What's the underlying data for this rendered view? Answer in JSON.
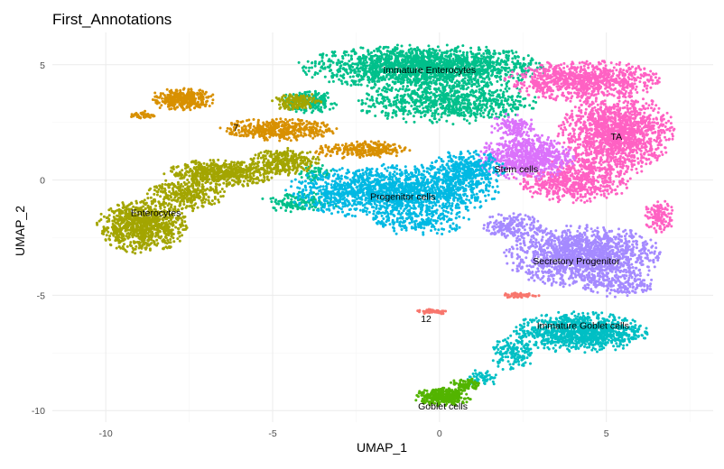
{
  "chart_data": {
    "type": "scatter",
    "title": "First_Annotations",
    "xlabel": "UMAP_1",
    "ylabel": "UMAP_2",
    "xlim": [
      -11.6,
      8.2
    ],
    "ylim": [
      -10.5,
      6.4
    ],
    "x_ticks": [
      -10,
      -5,
      0,
      5
    ],
    "y_ticks": [
      -10,
      -5,
      0,
      5
    ],
    "grid": true,
    "legend": "none",
    "series": [
      {
        "name": "Immature Enterocytes",
        "color": "#00C08B",
        "label_at": [
          -0.3,
          4.8
        ],
        "blobs": [
          [
            -0.5,
            4.9,
            3.8,
            1.0,
            1800
          ],
          [
            0.2,
            3.4,
            2.8,
            1.0,
            800
          ],
          [
            -3.9,
            3.4,
            0.9,
            0.5,
            200
          ],
          [
            -4.2,
            -1.0,
            1.2,
            0.5,
            140
          ],
          [
            -3.7,
            0.3,
            0.6,
            0.4,
            60
          ]
        ]
      },
      {
        "name": "TA",
        "color": "#FF61C3",
        "label_at": [
          5.3,
          1.9
        ],
        "blobs": [
          [
            4.3,
            4.3,
            2.4,
            0.9,
            900
          ],
          [
            5.3,
            2.0,
            1.8,
            1.8,
            1400
          ],
          [
            4.0,
            0.0,
            1.8,
            1.0,
            600
          ],
          [
            6.6,
            -1.6,
            0.5,
            0.8,
            120
          ]
        ]
      },
      {
        "name": "Stem cells",
        "color": "#DB72FB",
        "label_at": [
          2.3,
          0.5
        ],
        "blobs": [
          [
            2.6,
            1.0,
            1.5,
            1.0,
            700
          ],
          [
            2.2,
            2.3,
            0.7,
            0.6,
            120
          ]
        ]
      },
      {
        "name": "Progenitor cells",
        "color": "#00B9E3",
        "label_at": [
          -1.1,
          -0.7
        ],
        "blobs": [
          [
            -1.4,
            -0.5,
            3.3,
            1.2,
            1600
          ],
          [
            0.8,
            0.4,
            1.2,
            0.9,
            400
          ],
          [
            -0.6,
            -1.8,
            1.6,
            0.6,
            200
          ]
        ]
      },
      {
        "name": "Secretory Progenitor",
        "color": "#93AA00",
        "label_at": [
          4.1,
          -3.5
        ],
        "blobs": []
      },
      {
        "name": "Secretory Progenitor",
        "color": "#A58AFF",
        "label_at": [
          4.1,
          -3.5
        ],
        "blobs": [
          [
            4.3,
            -3.3,
            2.4,
            1.4,
            1500
          ],
          [
            2.2,
            -2.0,
            1.0,
            0.6,
            200
          ],
          [
            5.5,
            -4.6,
            1.2,
            0.5,
            150
          ]
        ]
      },
      {
        "name": "Immature Goblet cells",
        "color": "#00BFC4",
        "label_at": [
          4.3,
          -6.3
        ],
        "blobs": [
          [
            4.2,
            -6.6,
            2.1,
            0.9,
            1000
          ],
          [
            2.2,
            -7.5,
            0.7,
            0.8,
            150
          ],
          [
            1.3,
            -8.6,
            0.5,
            0.4,
            60
          ]
        ]
      },
      {
        "name": "Goblet cells",
        "color": "#53B400",
        "label_at": [
          0.1,
          -9.8
        ],
        "blobs": [
          [
            0.1,
            -9.4,
            0.9,
            0.4,
            350
          ],
          [
            0.8,
            -8.9,
            0.5,
            0.3,
            80
          ]
        ]
      },
      {
        "name": "Enterocytes",
        "color": "#A3A500",
        "label_at": [
          -8.5,
          -1.4
        ],
        "blobs": [
          [
            -8.9,
            -2.0,
            1.4,
            1.2,
            900
          ],
          [
            -6.5,
            0.3,
            1.8,
            0.6,
            600
          ],
          [
            -4.6,
            0.8,
            1.1,
            0.6,
            300
          ],
          [
            -4.3,
            3.4,
            0.8,
            0.4,
            150
          ],
          [
            -7.6,
            -0.6,
            1.2,
            0.8,
            300
          ]
        ]
      },
      {
        "name": "7",
        "color": "#D89000",
        "label_at": [
          -6.1,
          2.3
        ],
        "blobs": [
          [
            -7.7,
            3.5,
            1.0,
            0.5,
            350
          ],
          [
            -4.8,
            2.2,
            1.8,
            0.5,
            450
          ],
          [
            -2.3,
            1.3,
            1.5,
            0.4,
            250
          ],
          [
            -8.9,
            2.8,
            0.4,
            0.2,
            40
          ]
        ]
      },
      {
        "name": "12",
        "color": "#F8766D",
        "label_at": [
          -0.4,
          -6.0
        ],
        "blobs": [
          [
            -0.2,
            -5.7,
            0.5,
            0.12,
            60
          ],
          [
            2.4,
            -5.0,
            0.6,
            0.12,
            60
          ]
        ]
      }
    ],
    "labels": [
      {
        "text": "Immature Enterocytes",
        "x": -0.3,
        "y": 4.8
      },
      {
        "text": "TA",
        "x": 5.3,
        "y": 1.9
      },
      {
        "text": "7",
        "x": -6.1,
        "y": 2.3
      },
      {
        "text": "Stem cells",
        "x": 2.3,
        "y": 0.5
      },
      {
        "text": "Progenitor cells",
        "x": -1.1,
        "y": -0.7
      },
      {
        "text": "Enterocytes",
        "x": -8.5,
        "y": -1.4
      },
      {
        "text": "Secretory Progenitor",
        "x": 4.1,
        "y": -3.5
      },
      {
        "text": "12",
        "x": -0.4,
        "y": -6.0
      },
      {
        "text": "Immature Goblet cells",
        "x": 4.3,
        "y": -6.3
      },
      {
        "text": "Goblet cells",
        "x": 0.1,
        "y": -9.8
      }
    ]
  }
}
